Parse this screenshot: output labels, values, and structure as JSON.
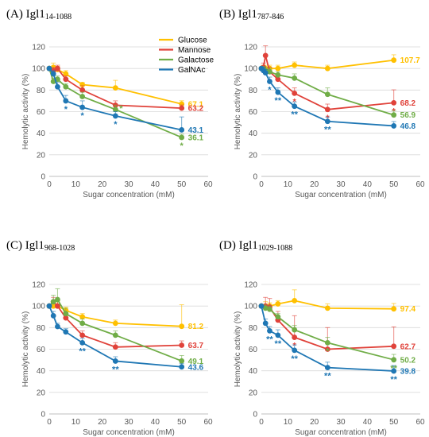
{
  "colors": {
    "Glucose": "#ffc000",
    "Mannose": "#e0423a",
    "Galactose": "#70ad47",
    "GalNAc": "#1f77b4"
  },
  "legend": [
    "Glucose",
    "Mannose",
    "Galactose",
    "GalNAc"
  ],
  "chart_data": [
    {
      "type": "line",
      "letter": "(A)",
      "name": "Igl1",
      "sub": "14-1088",
      "xlabel": "Sugar concentration (mM)",
      "ylabel": "Hemolytic activity (%)",
      "xlim": [
        0,
        60
      ],
      "ylim": [
        0,
        120
      ],
      "xticks": [
        0,
        10,
        20,
        30,
        40,
        50,
        60
      ],
      "yticks": [
        0,
        20,
        40,
        60,
        80,
        100,
        120
      ],
      "x": [
        0,
        1.56,
        3.13,
        6.25,
        12.5,
        25,
        50
      ],
      "series": [
        {
          "name": "Glucose",
          "values": [
            100,
            101,
            99,
            95,
            85,
            82,
            67.1
          ],
          "err": [
            0,
            4,
            3,
            3,
            2,
            7,
            3
          ],
          "end_label": "67.1",
          "stars": [
            "",
            "",
            "",
            "",
            "",
            "",
            ""
          ]
        },
        {
          "name": "Mannose",
          "values": [
            100,
            98,
            100,
            90,
            80,
            66,
            63.2
          ],
          "err": [
            0,
            3,
            3,
            3,
            4,
            4,
            3
          ],
          "end_label": "63.2",
          "stars": [
            "",
            "",
            "",
            "",
            "",
            "",
            ""
          ]
        },
        {
          "name": "Galactose",
          "values": [
            100,
            88,
            90,
            83,
            74,
            62,
            36.1
          ],
          "err": [
            0,
            3,
            3,
            3,
            4,
            4,
            3
          ],
          "end_label": "36.1",
          "stars": [
            "",
            "",
            "",
            "",
            "",
            "",
            "*"
          ]
        },
        {
          "name": "GalNAc",
          "values": [
            100,
            95,
            83,
            70,
            64,
            56,
            43.1
          ],
          "err": [
            0,
            3,
            4,
            5,
            6,
            4,
            12
          ],
          "end_label": "43.1",
          "stars": [
            "",
            "",
            "",
            "*",
            "*",
            "*",
            ""
          ]
        }
      ],
      "extra_stars": [
        {
          "series": "Galactose",
          "x": 25,
          "y": 62,
          "text": "*"
        }
      ]
    },
    {
      "type": "line",
      "letter": "(B)",
      "name": "Igl1",
      "sub": "787-846",
      "xlabel": "Sugar concentration (mM)",
      "ylabel": "Hemolytic activity (%)",
      "xlim": [
        0,
        60
      ],
      "ylim": [
        0,
        120
      ],
      "xticks": [
        0,
        10,
        20,
        30,
        40,
        50,
        60
      ],
      "yticks": [
        0,
        20,
        40,
        60,
        80,
        100,
        120
      ],
      "x": [
        0,
        0.78,
        1.56,
        3.13,
        6.25,
        12.5,
        25,
        50
      ],
      "series": [
        {
          "name": "Glucose",
          "values": [
            100,
            100,
            100,
            100,
            100,
            103,
            100,
            107.7
          ],
          "err": [
            0,
            3,
            3,
            3,
            3,
            3,
            3,
            5
          ],
          "end_label": "107.7",
          "stars": [
            "",
            "",
            "",
            "",
            "",
            "",
            "",
            ""
          ]
        },
        {
          "name": "Mannose",
          "values": [
            100,
            101,
            112,
            97,
            90,
            77,
            62,
            68.2
          ],
          "err": [
            0,
            4,
            9,
            4,
            3,
            5,
            5,
            12
          ],
          "end_label": "68.2",
          "stars": [
            "",
            "",
            "",
            "",
            "",
            "*",
            "*",
            "*"
          ]
        },
        {
          "name": "Galactose",
          "values": [
            100,
            99,
            98,
            97,
            94,
            91,
            76,
            56.9
          ],
          "err": [
            0,
            3,
            3,
            3,
            3,
            4,
            6,
            4
          ],
          "end_label": "56.9",
          "stars": [
            "",
            "",
            "",
            "",
            "",
            "",
            "",
            ""
          ]
        },
        {
          "name": "GalNAc",
          "values": [
            100,
            98,
            96,
            88,
            78,
            65,
            51,
            46.8
          ],
          "err": [
            0,
            3,
            3,
            4,
            4,
            4,
            4,
            4
          ],
          "end_label": "46.8",
          "stars": [
            "",
            "",
            "",
            "*",
            "**",
            "**",
            "**",
            ""
          ]
        }
      ],
      "extra_stars": []
    },
    {
      "type": "line",
      "letter": "(C)",
      "name": "Igl1",
      "sub": "968-1028",
      "xlabel": "Sugar concentration (mM)",
      "ylabel": "Hemolytic activity (%)",
      "xlim": [
        0,
        60
      ],
      "ylim": [
        0,
        120
      ],
      "xticks": [
        0,
        10,
        20,
        30,
        40,
        50,
        60
      ],
      "yticks": [
        0,
        20,
        40,
        60,
        80,
        100,
        120
      ],
      "x": [
        0,
        1.56,
        3.13,
        6.25,
        12.5,
        25,
        50
      ],
      "series": [
        {
          "name": "Glucose",
          "values": [
            100,
            100,
            100,
            96,
            90,
            84,
            81.2
          ],
          "err": [
            0,
            4,
            4,
            3,
            3,
            3,
            20
          ],
          "end_label": "81.2",
          "stars": [
            "",
            "",
            "",
            "",
            "",
            "",
            ""
          ]
        },
        {
          "name": "Mannose",
          "values": [
            100,
            104,
            100,
            89,
            73,
            62,
            63.7
          ],
          "err": [
            0,
            4,
            5,
            4,
            4,
            4,
            4
          ],
          "end_label": "63.7",
          "stars": [
            "",
            "",
            "",
            "",
            "*",
            "",
            ""
          ]
        },
        {
          "name": "Galactose",
          "values": [
            100,
            104,
            106,
            93,
            84,
            73,
            49.1
          ],
          "err": [
            0,
            6,
            10,
            5,
            4,
            4,
            5
          ],
          "end_label": "49.1",
          "stars": [
            "",
            "",
            "",
            "",
            "",
            "",
            ""
          ]
        },
        {
          "name": "GalNAc",
          "values": [
            100,
            91,
            81,
            76,
            66,
            49,
            43.6
          ],
          "err": [
            0,
            4,
            3,
            3,
            4,
            4,
            3
          ],
          "end_label": "43.6",
          "stars": [
            "",
            "",
            "",
            "",
            "**",
            "**",
            ""
          ]
        }
      ],
      "extra_stars": []
    },
    {
      "type": "line",
      "letter": "(D)",
      "name": "Igl1",
      "sub": "1029-1088",
      "xlabel": "Sugar concentration (mM)",
      "ylabel": "Hemolytic activity (%)",
      "xlim": [
        0,
        60
      ],
      "ylim": [
        0,
        120
      ],
      "xticks": [
        0,
        10,
        20,
        30,
        40,
        50,
        60
      ],
      "yticks": [
        0,
        20,
        40,
        60,
        80,
        100,
        120
      ],
      "x": [
        0,
        1.56,
        3.13,
        6.25,
        12.5,
        25,
        50
      ],
      "series": [
        {
          "name": "Glucose",
          "values": [
            100,
            100,
            100,
            102,
            105,
            98,
            97.4
          ],
          "err": [
            0,
            4,
            3,
            3,
            10,
            4,
            5
          ],
          "end_label": "97.4",
          "stars": [
            "",
            "",
            "",
            "",
            "",
            "",
            ""
          ]
        },
        {
          "name": "Mannose",
          "values": [
            100,
            100,
            99,
            87,
            71,
            60,
            62.7
          ],
          "err": [
            0,
            8,
            8,
            8,
            20,
            20,
            18
          ],
          "end_label": "62.7",
          "stars": [
            "",
            "",
            "",
            "",
            "*",
            "",
            ""
          ]
        },
        {
          "name": "Galactose",
          "values": [
            100,
            98,
            97,
            90,
            78,
            66,
            50.2
          ],
          "err": [
            0,
            3,
            3,
            3,
            4,
            5,
            5
          ],
          "end_label": "50.2",
          "stars": [
            "",
            "",
            "",
            "",
            "",
            "*",
            "**"
          ]
        },
        {
          "name": "GalNAc",
          "values": [
            100,
            84,
            77,
            73,
            59,
            43,
            39.8
          ],
          "err": [
            0,
            4,
            4,
            5,
            5,
            5,
            5
          ],
          "end_label": "39.8",
          "stars": [
            "",
            "",
            "**",
            "**",
            "**",
            "**",
            "**"
          ]
        }
      ],
      "extra_stars": []
    }
  ]
}
